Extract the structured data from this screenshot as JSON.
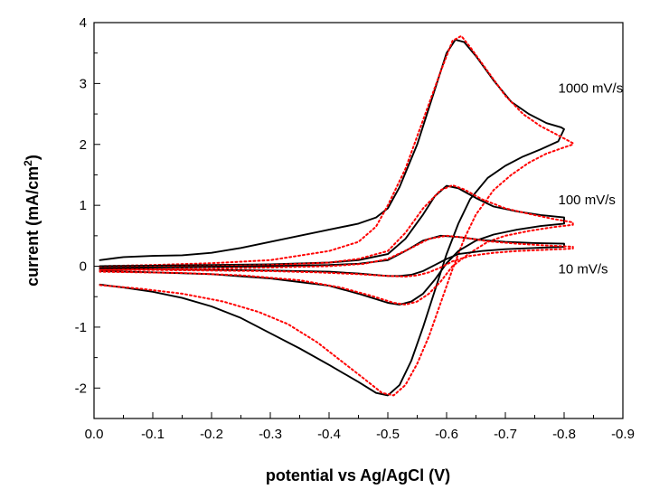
{
  "chart_data": {
    "type": "line",
    "title": "",
    "xlabel": "potential vs Ag/AgCl  (V)",
    "ylabel_main": "current (mA/cm",
    "ylabel_sup": "2",
    "ylabel_close": ")",
    "xlim": [
      0.0,
      -0.9
    ],
    "ylim": [
      -2.5,
      4.0
    ],
    "xticks": [
      0.0,
      -0.1,
      -0.2,
      -0.3,
      -0.4,
      -0.5,
      -0.6,
      -0.7,
      -0.8,
      -0.9
    ],
    "xtick_labels": [
      "0.0",
      "-0.1",
      "-0.2",
      "-0.3",
      "-0.4",
      "-0.5",
      "-0.6",
      "-0.7",
      "-0.8",
      "-0.9"
    ],
    "yticks": [
      -2,
      -1,
      0,
      1,
      2,
      3,
      4
    ],
    "ytick_labels": [
      "-2",
      "-1",
      "0",
      "1",
      "2",
      "3",
      "4"
    ],
    "grid": false,
    "annotations": [
      {
        "text": "1000 mV/s",
        "x": -0.79,
        "y": 2.85
      },
      {
        "text": "100 mV/s",
        "x": -0.79,
        "y": 1.02
      },
      {
        "text": "10 mV/s",
        "x": -0.79,
        "y": -0.12
      }
    ],
    "styles": {
      "experimental": {
        "color": "#000000",
        "dash": "solid"
      },
      "simulated": {
        "color": "#ff0000",
        "dash": "dotted"
      }
    },
    "series": [
      {
        "style": "experimental",
        "scan_rate": "1000 mV/s",
        "forward": [
          [
            -0.01,
            0.1
          ],
          [
            -0.05,
            0.15
          ],
          [
            -0.1,
            0.17
          ],
          [
            -0.15,
            0.18
          ],
          [
            -0.2,
            0.22
          ],
          [
            -0.25,
            0.3
          ],
          [
            -0.3,
            0.4
          ],
          [
            -0.35,
            0.5
          ],
          [
            -0.4,
            0.6
          ],
          [
            -0.45,
            0.7
          ],
          [
            -0.48,
            0.8
          ],
          [
            -0.5,
            0.95
          ],
          [
            -0.52,
            1.3
          ],
          [
            -0.55,
            2.0
          ],
          [
            -0.58,
            2.9
          ],
          [
            -0.6,
            3.5
          ],
          [
            -0.615,
            3.72
          ],
          [
            -0.63,
            3.68
          ],
          [
            -0.65,
            3.45
          ],
          [
            -0.68,
            3.05
          ],
          [
            -0.71,
            2.7
          ],
          [
            -0.74,
            2.5
          ],
          [
            -0.77,
            2.35
          ],
          [
            -0.795,
            2.28
          ]
        ],
        "reverse": [
          [
            -0.8,
            2.25
          ],
          [
            -0.79,
            2.05
          ],
          [
            -0.76,
            1.92
          ],
          [
            -0.73,
            1.8
          ],
          [
            -0.7,
            1.65
          ],
          [
            -0.67,
            1.45
          ],
          [
            -0.64,
            1.1
          ],
          [
            -0.62,
            0.7
          ],
          [
            -0.6,
            0.2
          ],
          [
            -0.58,
            -0.4
          ],
          [
            -0.56,
            -1.0
          ],
          [
            -0.54,
            -1.55
          ],
          [
            -0.52,
            -1.95
          ],
          [
            -0.5,
            -2.12
          ],
          [
            -0.48,
            -2.08
          ],
          [
            -0.45,
            -1.9
          ],
          [
            -0.4,
            -1.62
          ],
          [
            -0.35,
            -1.35
          ],
          [
            -0.3,
            -1.1
          ],
          [
            -0.25,
            -0.85
          ],
          [
            -0.2,
            -0.66
          ],
          [
            -0.15,
            -0.52
          ],
          [
            -0.1,
            -0.42
          ],
          [
            -0.05,
            -0.35
          ],
          [
            -0.01,
            -0.3
          ]
        ]
      },
      {
        "style": "simulated",
        "scan_rate": "1000 mV/s",
        "forward": [
          [
            -0.01,
            0.0
          ],
          [
            -0.1,
            0.02
          ],
          [
            -0.2,
            0.05
          ],
          [
            -0.3,
            0.1
          ],
          [
            -0.4,
            0.25
          ],
          [
            -0.45,
            0.4
          ],
          [
            -0.48,
            0.65
          ],
          [
            -0.5,
            1.0
          ],
          [
            -0.53,
            1.6
          ],
          [
            -0.56,
            2.4
          ],
          [
            -0.59,
            3.2
          ],
          [
            -0.61,
            3.7
          ],
          [
            -0.625,
            3.78
          ],
          [
            -0.64,
            3.6
          ],
          [
            -0.67,
            3.2
          ],
          [
            -0.7,
            2.8
          ],
          [
            -0.73,
            2.5
          ],
          [
            -0.76,
            2.3
          ],
          [
            -0.79,
            2.15
          ],
          [
            -0.815,
            2.02
          ]
        ],
        "reverse": [
          [
            -0.815,
            2.0
          ],
          [
            -0.8,
            1.95
          ],
          [
            -0.77,
            1.85
          ],
          [
            -0.74,
            1.7
          ],
          [
            -0.71,
            1.5
          ],
          [
            -0.68,
            1.25
          ],
          [
            -0.65,
            0.85
          ],
          [
            -0.63,
            0.45
          ],
          [
            -0.61,
            -0.05
          ],
          [
            -0.59,
            -0.6
          ],
          [
            -0.57,
            -1.15
          ],
          [
            -0.55,
            -1.6
          ],
          [
            -0.53,
            -1.95
          ],
          [
            -0.51,
            -2.12
          ],
          [
            -0.49,
            -2.08
          ],
          [
            -0.46,
            -1.85
          ],
          [
            -0.42,
            -1.55
          ],
          [
            -0.38,
            -1.25
          ],
          [
            -0.33,
            -0.95
          ],
          [
            -0.28,
            -0.75
          ],
          [
            -0.22,
            -0.58
          ],
          [
            -0.15,
            -0.45
          ],
          [
            -0.08,
            -0.37
          ],
          [
            -0.01,
            -0.31
          ]
        ]
      },
      {
        "style": "experimental",
        "scan_rate": "100 mV/s",
        "forward": [
          [
            -0.01,
            0.0
          ],
          [
            -0.1,
            0.01
          ],
          [
            -0.2,
            0.02
          ],
          [
            -0.3,
            0.03
          ],
          [
            -0.4,
            0.06
          ],
          [
            -0.45,
            0.1
          ],
          [
            -0.5,
            0.2
          ],
          [
            -0.53,
            0.45
          ],
          [
            -0.56,
            0.85
          ],
          [
            -0.58,
            1.15
          ],
          [
            -0.6,
            1.32
          ],
          [
            -0.62,
            1.28
          ],
          [
            -0.65,
            1.12
          ],
          [
            -0.68,
            0.98
          ],
          [
            -0.72,
            0.9
          ],
          [
            -0.76,
            0.84
          ],
          [
            -0.8,
            0.8
          ]
        ],
        "reverse": [
          [
            -0.8,
            0.7
          ],
          [
            -0.76,
            0.66
          ],
          [
            -0.72,
            0.6
          ],
          [
            -0.68,
            0.52
          ],
          [
            -0.65,
            0.42
          ],
          [
            -0.62,
            0.25
          ],
          [
            -0.6,
            0.05
          ],
          [
            -0.58,
            -0.22
          ],
          [
            -0.56,
            -0.45
          ],
          [
            -0.54,
            -0.58
          ],
          [
            -0.52,
            -0.63
          ],
          [
            -0.5,
            -0.6
          ],
          [
            -0.45,
            -0.45
          ],
          [
            -0.4,
            -0.32
          ],
          [
            -0.3,
            -0.2
          ],
          [
            -0.2,
            -0.13
          ],
          [
            -0.1,
            -0.1
          ],
          [
            -0.01,
            -0.08
          ]
        ]
      },
      {
        "style": "simulated",
        "scan_rate": "100 mV/s",
        "forward": [
          [
            -0.01,
            -0.02
          ],
          [
            -0.1,
            -0.01
          ],
          [
            -0.2,
            0.0
          ],
          [
            -0.3,
            0.02
          ],
          [
            -0.4,
            0.06
          ],
          [
            -0.45,
            0.12
          ],
          [
            -0.5,
            0.25
          ],
          [
            -0.53,
            0.55
          ],
          [
            -0.56,
            0.95
          ],
          [
            -0.59,
            1.25
          ],
          [
            -0.61,
            1.33
          ],
          [
            -0.63,
            1.26
          ],
          [
            -0.66,
            1.1
          ],
          [
            -0.7,
            0.95
          ],
          [
            -0.74,
            0.86
          ],
          [
            -0.78,
            0.78
          ],
          [
            -0.815,
            0.72
          ]
        ],
        "reverse": [
          [
            -0.815,
            0.68
          ],
          [
            -0.78,
            0.64
          ],
          [
            -0.74,
            0.58
          ],
          [
            -0.7,
            0.5
          ],
          [
            -0.67,
            0.4
          ],
          [
            -0.64,
            0.22
          ],
          [
            -0.61,
            0.0
          ],
          [
            -0.59,
            -0.25
          ],
          [
            -0.57,
            -0.45
          ],
          [
            -0.55,
            -0.58
          ],
          [
            -0.53,
            -0.63
          ],
          [
            -0.51,
            -0.6
          ],
          [
            -0.47,
            -0.48
          ],
          [
            -0.42,
            -0.35
          ],
          [
            -0.35,
            -0.23
          ],
          [
            -0.25,
            -0.15
          ],
          [
            -0.15,
            -0.11
          ],
          [
            -0.01,
            -0.09
          ]
        ]
      },
      {
        "style": "experimental",
        "scan_rate": "10 mV/s",
        "forward": [
          [
            -0.01,
            -0.03
          ],
          [
            -0.1,
            -0.02
          ],
          [
            -0.2,
            -0.01
          ],
          [
            -0.3,
            0.0
          ],
          [
            -0.4,
            0.02
          ],
          [
            -0.45,
            0.04
          ],
          [
            -0.5,
            0.1
          ],
          [
            -0.53,
            0.25
          ],
          [
            -0.56,
            0.42
          ],
          [
            -0.59,
            0.5
          ],
          [
            -0.62,
            0.48
          ],
          [
            -0.66,
            0.43
          ],
          [
            -0.7,
            0.4
          ],
          [
            -0.75,
            0.38
          ],
          [
            -0.8,
            0.37
          ]
        ],
        "reverse": [
          [
            -0.8,
            0.32
          ],
          [
            -0.75,
            0.3
          ],
          [
            -0.7,
            0.28
          ],
          [
            -0.66,
            0.25
          ],
          [
            -0.62,
            0.2
          ],
          [
            -0.6,
            0.12
          ],
          [
            -0.58,
            0.02
          ],
          [
            -0.56,
            -0.08
          ],
          [
            -0.54,
            -0.14
          ],
          [
            -0.52,
            -0.16
          ],
          [
            -0.5,
            -0.16
          ],
          [
            -0.45,
            -0.12
          ],
          [
            -0.4,
            -0.09
          ],
          [
            -0.3,
            -0.07
          ],
          [
            -0.2,
            -0.06
          ],
          [
            -0.1,
            -0.05
          ],
          [
            -0.01,
            -0.05
          ]
        ]
      },
      {
        "style": "simulated",
        "scan_rate": "10 mV/s",
        "forward": [
          [
            -0.01,
            -0.06
          ],
          [
            -0.1,
            -0.05
          ],
          [
            -0.2,
            -0.04
          ],
          [
            -0.3,
            -0.02
          ],
          [
            -0.4,
            0.0
          ],
          [
            -0.46,
            0.04
          ],
          [
            -0.5,
            0.12
          ],
          [
            -0.54,
            0.3
          ],
          [
            -0.57,
            0.45
          ],
          [
            -0.6,
            0.5
          ],
          [
            -0.63,
            0.47
          ],
          [
            -0.67,
            0.41
          ],
          [
            -0.72,
            0.37
          ],
          [
            -0.77,
            0.34
          ],
          [
            -0.815,
            0.32
          ]
        ],
        "reverse": [
          [
            -0.815,
            0.29
          ],
          [
            -0.77,
            0.27
          ],
          [
            -0.72,
            0.25
          ],
          [
            -0.68,
            0.22
          ],
          [
            -0.64,
            0.17
          ],
          [
            -0.61,
            0.08
          ],
          [
            -0.59,
            -0.02
          ],
          [
            -0.57,
            -0.1
          ],
          [
            -0.55,
            -0.15
          ],
          [
            -0.53,
            -0.17
          ],
          [
            -0.5,
            -0.16
          ],
          [
            -0.45,
            -0.13
          ],
          [
            -0.38,
            -0.1
          ],
          [
            -0.3,
            -0.08
          ],
          [
            -0.2,
            -0.07
          ],
          [
            -0.1,
            -0.06
          ],
          [
            -0.01,
            -0.06
          ]
        ]
      }
    ]
  }
}
